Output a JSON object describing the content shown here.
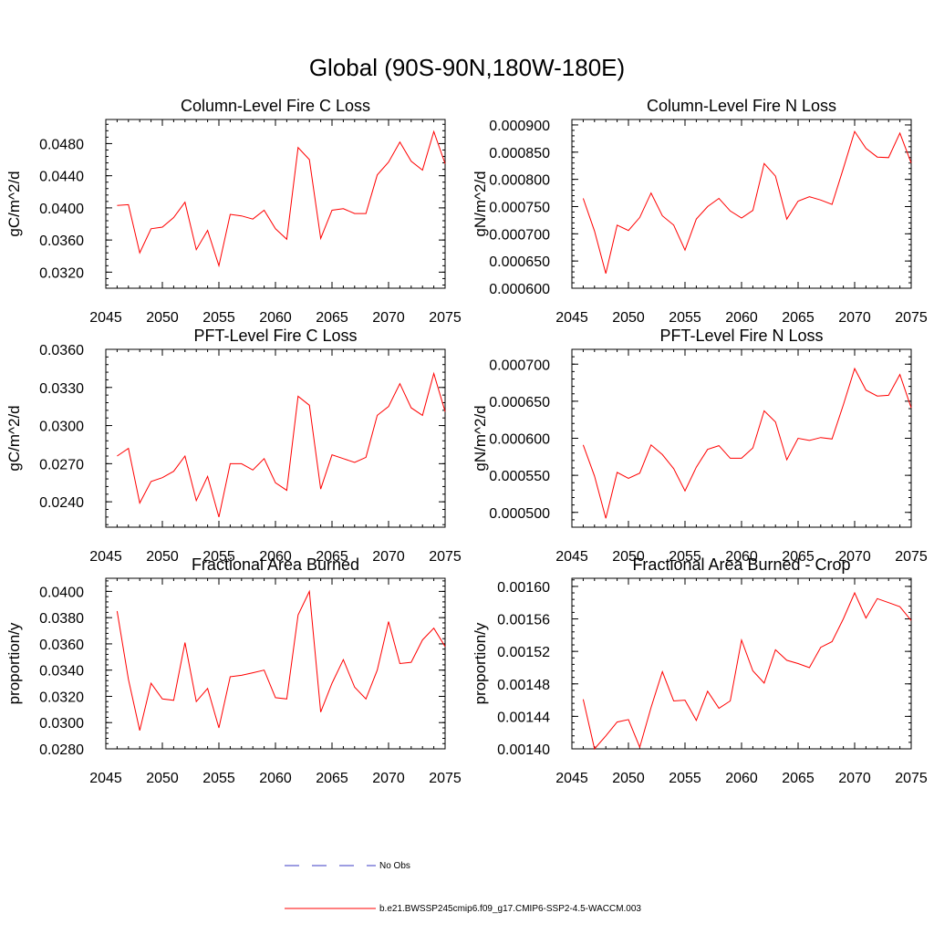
{
  "figure": {
    "title": "Global (90S-90N,180W-180E)"
  },
  "chart_data": [
    {
      "type": "line",
      "title": "Column-Level Fire C Loss",
      "xlabel": "",
      "ylabel": "gC/m^2/d",
      "xlim": [
        2045,
        2075
      ],
      "ylim": [
        0.03,
        0.051
      ],
      "xticks": [
        2045,
        2050,
        2055,
        2060,
        2065,
        2070,
        2075
      ],
      "xtick_labels": [
        "2045",
        "2050",
        "2055",
        "2060",
        "2065",
        "2070",
        "2075"
      ],
      "yticks": [
        0.032,
        0.036,
        0.04,
        0.044,
        0.048
      ],
      "ytick_labels": [
        "0.0320",
        "0.0360",
        "0.0400",
        "0.0440",
        "0.0480"
      ],
      "series": [
        {
          "x": [
            2046,
            2047,
            2048,
            2049,
            2050,
            2051,
            2052,
            2053,
            2054,
            2055,
            2056,
            2057,
            2058,
            2059,
            2060,
            2061,
            2062,
            2063,
            2064,
            2065,
            2066,
            2067,
            2068,
            2069,
            2070,
            2071,
            2072,
            2073,
            2074,
            2075
          ],
          "values": [
            0.0403,
            0.0404,
            0.0344,
            0.0374,
            0.0376,
            0.0388,
            0.0407,
            0.0348,
            0.0372,
            0.0328,
            0.0392,
            0.039,
            0.0386,
            0.0397,
            0.0374,
            0.0361,
            0.0475,
            0.046,
            0.0362,
            0.0397,
            0.0399,
            0.0393,
            0.0393,
            0.0441,
            0.0457,
            0.0482,
            0.0458,
            0.0447,
            0.0495,
            0.0455
          ]
        }
      ]
    },
    {
      "type": "line",
      "title": "Column-Level Fire N Loss",
      "xlabel": "",
      "ylabel": "gN/m^2/d",
      "xlim": [
        2045,
        2075
      ],
      "ylim": [
        0.0006,
        0.00091
      ],
      "xticks": [
        2045,
        2050,
        2055,
        2060,
        2065,
        2070,
        2075
      ],
      "xtick_labels": [
        "2045",
        "2050",
        "2055",
        "2060",
        "2065",
        "2070",
        "2075"
      ],
      "yticks": [
        0.0006,
        0.00065,
        0.0007,
        0.00075,
        0.0008,
        0.00085,
        0.0009
      ],
      "ytick_labels": [
        "0.000600",
        "0.000650",
        "0.000700",
        "0.000750",
        "0.000800",
        "0.000850",
        "0.000900"
      ],
      "series": [
        {
          "x": [
            2046,
            2047,
            2048,
            2049,
            2050,
            2051,
            2052,
            2053,
            2054,
            2055,
            2056,
            2057,
            2058,
            2059,
            2060,
            2061,
            2062,
            2063,
            2064,
            2065,
            2066,
            2067,
            2068,
            2069,
            2070,
            2071,
            2072,
            2073,
            2074,
            2075
          ],
          "values": [
            0.000765,
            0.000705,
            0.000627,
            0.000716,
            0.000706,
            0.00073,
            0.000775,
            0.000733,
            0.000716,
            0.00067,
            0.000727,
            0.00075,
            0.000765,
            0.000742,
            0.000729,
            0.000743,
            0.000829,
            0.000806,
            0.000727,
            0.00076,
            0.000768,
            0.000762,
            0.000754,
            0.00082,
            0.000888,
            0.000857,
            0.000841,
            0.00084,
            0.000885,
            0.00083
          ]
        }
      ]
    },
    {
      "type": "line",
      "title": "PFT-Level Fire C Loss",
      "xlabel": "",
      "ylabel": "gC/m^2/d",
      "xlim": [
        2045,
        2075
      ],
      "ylim": [
        0.022,
        0.036
      ],
      "xticks": [
        2045,
        2050,
        2055,
        2060,
        2065,
        2070,
        2075
      ],
      "xtick_labels": [
        "2045",
        "2050",
        "2055",
        "2060",
        "2065",
        "2070",
        "2075"
      ],
      "yticks": [
        0.024,
        0.027,
        0.03,
        0.033,
        0.036
      ],
      "ytick_labels": [
        "0.0240",
        "0.0270",
        "0.0300",
        "0.0330",
        "0.0360"
      ],
      "series": [
        {
          "x": [
            2046,
            2047,
            2048,
            2049,
            2050,
            2051,
            2052,
            2053,
            2054,
            2055,
            2056,
            2057,
            2058,
            2059,
            2060,
            2061,
            2062,
            2063,
            2064,
            2065,
            2066,
            2067,
            2068,
            2069,
            2070,
            2071,
            2072,
            2073,
            2074,
            2075
          ],
          "values": [
            0.0276,
            0.0282,
            0.0239,
            0.0256,
            0.0259,
            0.0264,
            0.0276,
            0.0241,
            0.026,
            0.0228,
            0.027,
            0.027,
            0.0265,
            0.0274,
            0.0255,
            0.0249,
            0.0323,
            0.0316,
            0.025,
            0.0277,
            0.0274,
            0.0271,
            0.0275,
            0.0308,
            0.0315,
            0.0333,
            0.0314,
            0.0308,
            0.0341,
            0.0311
          ]
        }
      ]
    },
    {
      "type": "line",
      "title": "PFT-Level Fire N Loss",
      "xlabel": "",
      "ylabel": "gN/m^2/d",
      "xlim": [
        2045,
        2075
      ],
      "ylim": [
        0.00048,
        0.00072
      ],
      "xticks": [
        2045,
        2050,
        2055,
        2060,
        2065,
        2070,
        2075
      ],
      "xtick_labels": [
        "2045",
        "2050",
        "2055",
        "2060",
        "2065",
        "2070",
        "2075"
      ],
      "yticks": [
        0.0005,
        0.00055,
        0.0006,
        0.00065,
        0.0007
      ],
      "ytick_labels": [
        "0.000500",
        "0.000550",
        "0.000600",
        "0.000650",
        "0.000700"
      ],
      "series": [
        {
          "x": [
            2046,
            2047,
            2048,
            2049,
            2050,
            2051,
            2052,
            2053,
            2054,
            2055,
            2056,
            2057,
            2058,
            2059,
            2060,
            2061,
            2062,
            2063,
            2064,
            2065,
            2066,
            2067,
            2068,
            2069,
            2070,
            2071,
            2072,
            2073,
            2074,
            2075
          ],
          "values": [
            0.000591,
            0.000549,
            0.000492,
            0.000554,
            0.000546,
            0.000553,
            0.000591,
            0.000578,
            0.000559,
            0.000529,
            0.000561,
            0.000585,
            0.00059,
            0.000573,
            0.000573,
            0.000587,
            0.000637,
            0.000622,
            0.000571,
            0.0006,
            0.000597,
            0.000601,
            0.000599,
            0.000645,
            0.000694,
            0.000665,
            0.000657,
            0.000658,
            0.000686,
            0.000641
          ]
        }
      ]
    },
    {
      "type": "line",
      "title": "Fractional Area Burned",
      "xlabel": "",
      "ylabel": "proportion/y",
      "xlim": [
        2045,
        2075
      ],
      "ylim": [
        0.028,
        0.041
      ],
      "xticks": [
        2045,
        2050,
        2055,
        2060,
        2065,
        2070,
        2075
      ],
      "xtick_labels": [
        "2045",
        "2050",
        "2055",
        "2060",
        "2065",
        "2070",
        "2075"
      ],
      "yticks": [
        0.028,
        0.03,
        0.032,
        0.034,
        0.036,
        0.038,
        0.04
      ],
      "ytick_labels": [
        "0.0280",
        "0.0300",
        "0.0320",
        "0.0340",
        "0.0360",
        "0.0380",
        "0.0400"
      ],
      "series": [
        {
          "x": [
            2046,
            2047,
            2048,
            2049,
            2050,
            2051,
            2052,
            2053,
            2054,
            2055,
            2056,
            2057,
            2058,
            2059,
            2060,
            2061,
            2062,
            2063,
            2064,
            2065,
            2066,
            2067,
            2068,
            2069,
            2070,
            2071,
            2072,
            2073,
            2074,
            2075
          ],
          "values": [
            0.0385,
            0.0333,
            0.0294,
            0.033,
            0.0318,
            0.0317,
            0.0361,
            0.0316,
            0.0326,
            0.0296,
            0.0335,
            0.0336,
            0.0338,
            0.034,
            0.0319,
            0.0318,
            0.0382,
            0.04,
            0.0308,
            0.033,
            0.0348,
            0.0327,
            0.0318,
            0.034,
            0.0377,
            0.0345,
            0.0346,
            0.0363,
            0.0372,
            0.0358
          ]
        }
      ]
    },
    {
      "type": "line",
      "title": "Fractional Area Burned - Crop",
      "xlabel": "",
      "ylabel": "proportion/y",
      "xlim": [
        2045,
        2075
      ],
      "ylim": [
        0.0014,
        0.00161
      ],
      "xticks": [
        2045,
        2050,
        2055,
        2060,
        2065,
        2070,
        2075
      ],
      "xtick_labels": [
        "2045",
        "2050",
        "2055",
        "2060",
        "2065",
        "2070",
        "2075"
      ],
      "yticks": [
        0.0014,
        0.00144,
        0.00148,
        0.00152,
        0.00156,
        0.0016
      ],
      "ytick_labels": [
        "0.00140",
        "0.00144",
        "0.00148",
        "0.00152",
        "0.00156",
        "0.00160"
      ],
      "series": [
        {
          "x": [
            2046,
            2047,
            2048,
            2049,
            2050,
            2051,
            2052,
            2053,
            2054,
            2055,
            2056,
            2057,
            2058,
            2059,
            2060,
            2061,
            2062,
            2063,
            2064,
            2065,
            2066,
            2067,
            2068,
            2069,
            2070,
            2071,
            2072,
            2073,
            2074,
            2075
          ],
          "values": [
            0.001461,
            0.0014,
            0.001416,
            0.001433,
            0.001436,
            0.001402,
            0.001451,
            0.001495,
            0.001459,
            0.00146,
            0.001435,
            0.001471,
            0.00145,
            0.001459,
            0.001534,
            0.001496,
            0.001481,
            0.001522,
            0.001509,
            0.001505,
            0.0015,
            0.001525,
            0.001532,
            0.00156,
            0.001592,
            0.001561,
            0.001585,
            0.00158,
            0.001575,
            0.001558
          ]
        }
      ]
    }
  ],
  "legend": {
    "entries": [
      {
        "label": "No Obs",
        "color": "#3b3bc4",
        "style": "dashed"
      },
      {
        "label": "b.e21.BWSSP245cmip6.f09_g17.CMIP6-SSP2-4.5-WACCM.003",
        "color": "#ff0000",
        "style": "solid"
      }
    ]
  },
  "colors": {
    "series_line": "#ff0000",
    "axis": "#000000"
  }
}
